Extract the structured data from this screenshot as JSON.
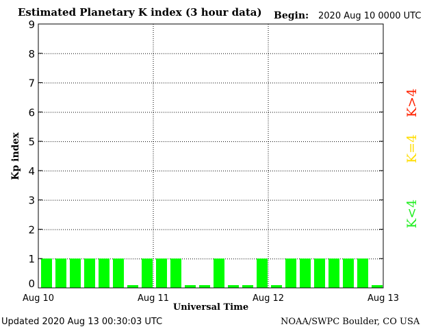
{
  "chart_data": {
    "type": "bar",
    "title": "Estimated Planetary K index (3 hour data)",
    "begin_label": "Begin:",
    "begin_value": "2020 Aug 10 0000 UTC",
    "ylabel": "Kp index",
    "xlabel": "Universal Time",
    "ylim": [
      0,
      9
    ],
    "yticks": [
      "0",
      "1",
      "2",
      "3",
      "4",
      "5",
      "6",
      "7",
      "8",
      "9"
    ],
    "xtick_labels": [
      "Aug 10",
      "Aug 11",
      "Aug 12",
      "Aug 13"
    ],
    "grid": true,
    "values": [
      1,
      1,
      1,
      1,
      1,
      1,
      0,
      1,
      1,
      1,
      0,
      0,
      1,
      0,
      0,
      1,
      0,
      1,
      1,
      1,
      1,
      1,
      1,
      0
    ],
    "bar_color": "#00ff00",
    "legend": [
      {
        "label": "K<4",
        "color": "#22ee22"
      },
      {
        "label": "K=4",
        "color": "#ffdd00"
      },
      {
        "label": "K>4",
        "color": "#ff2200"
      }
    ],
    "legend_placement": "right"
  },
  "footer": {
    "updated": "Updated 2020 Aug 13 00:30:03 UTC",
    "source": "NOAA/SWPC Boulder, CO USA"
  }
}
